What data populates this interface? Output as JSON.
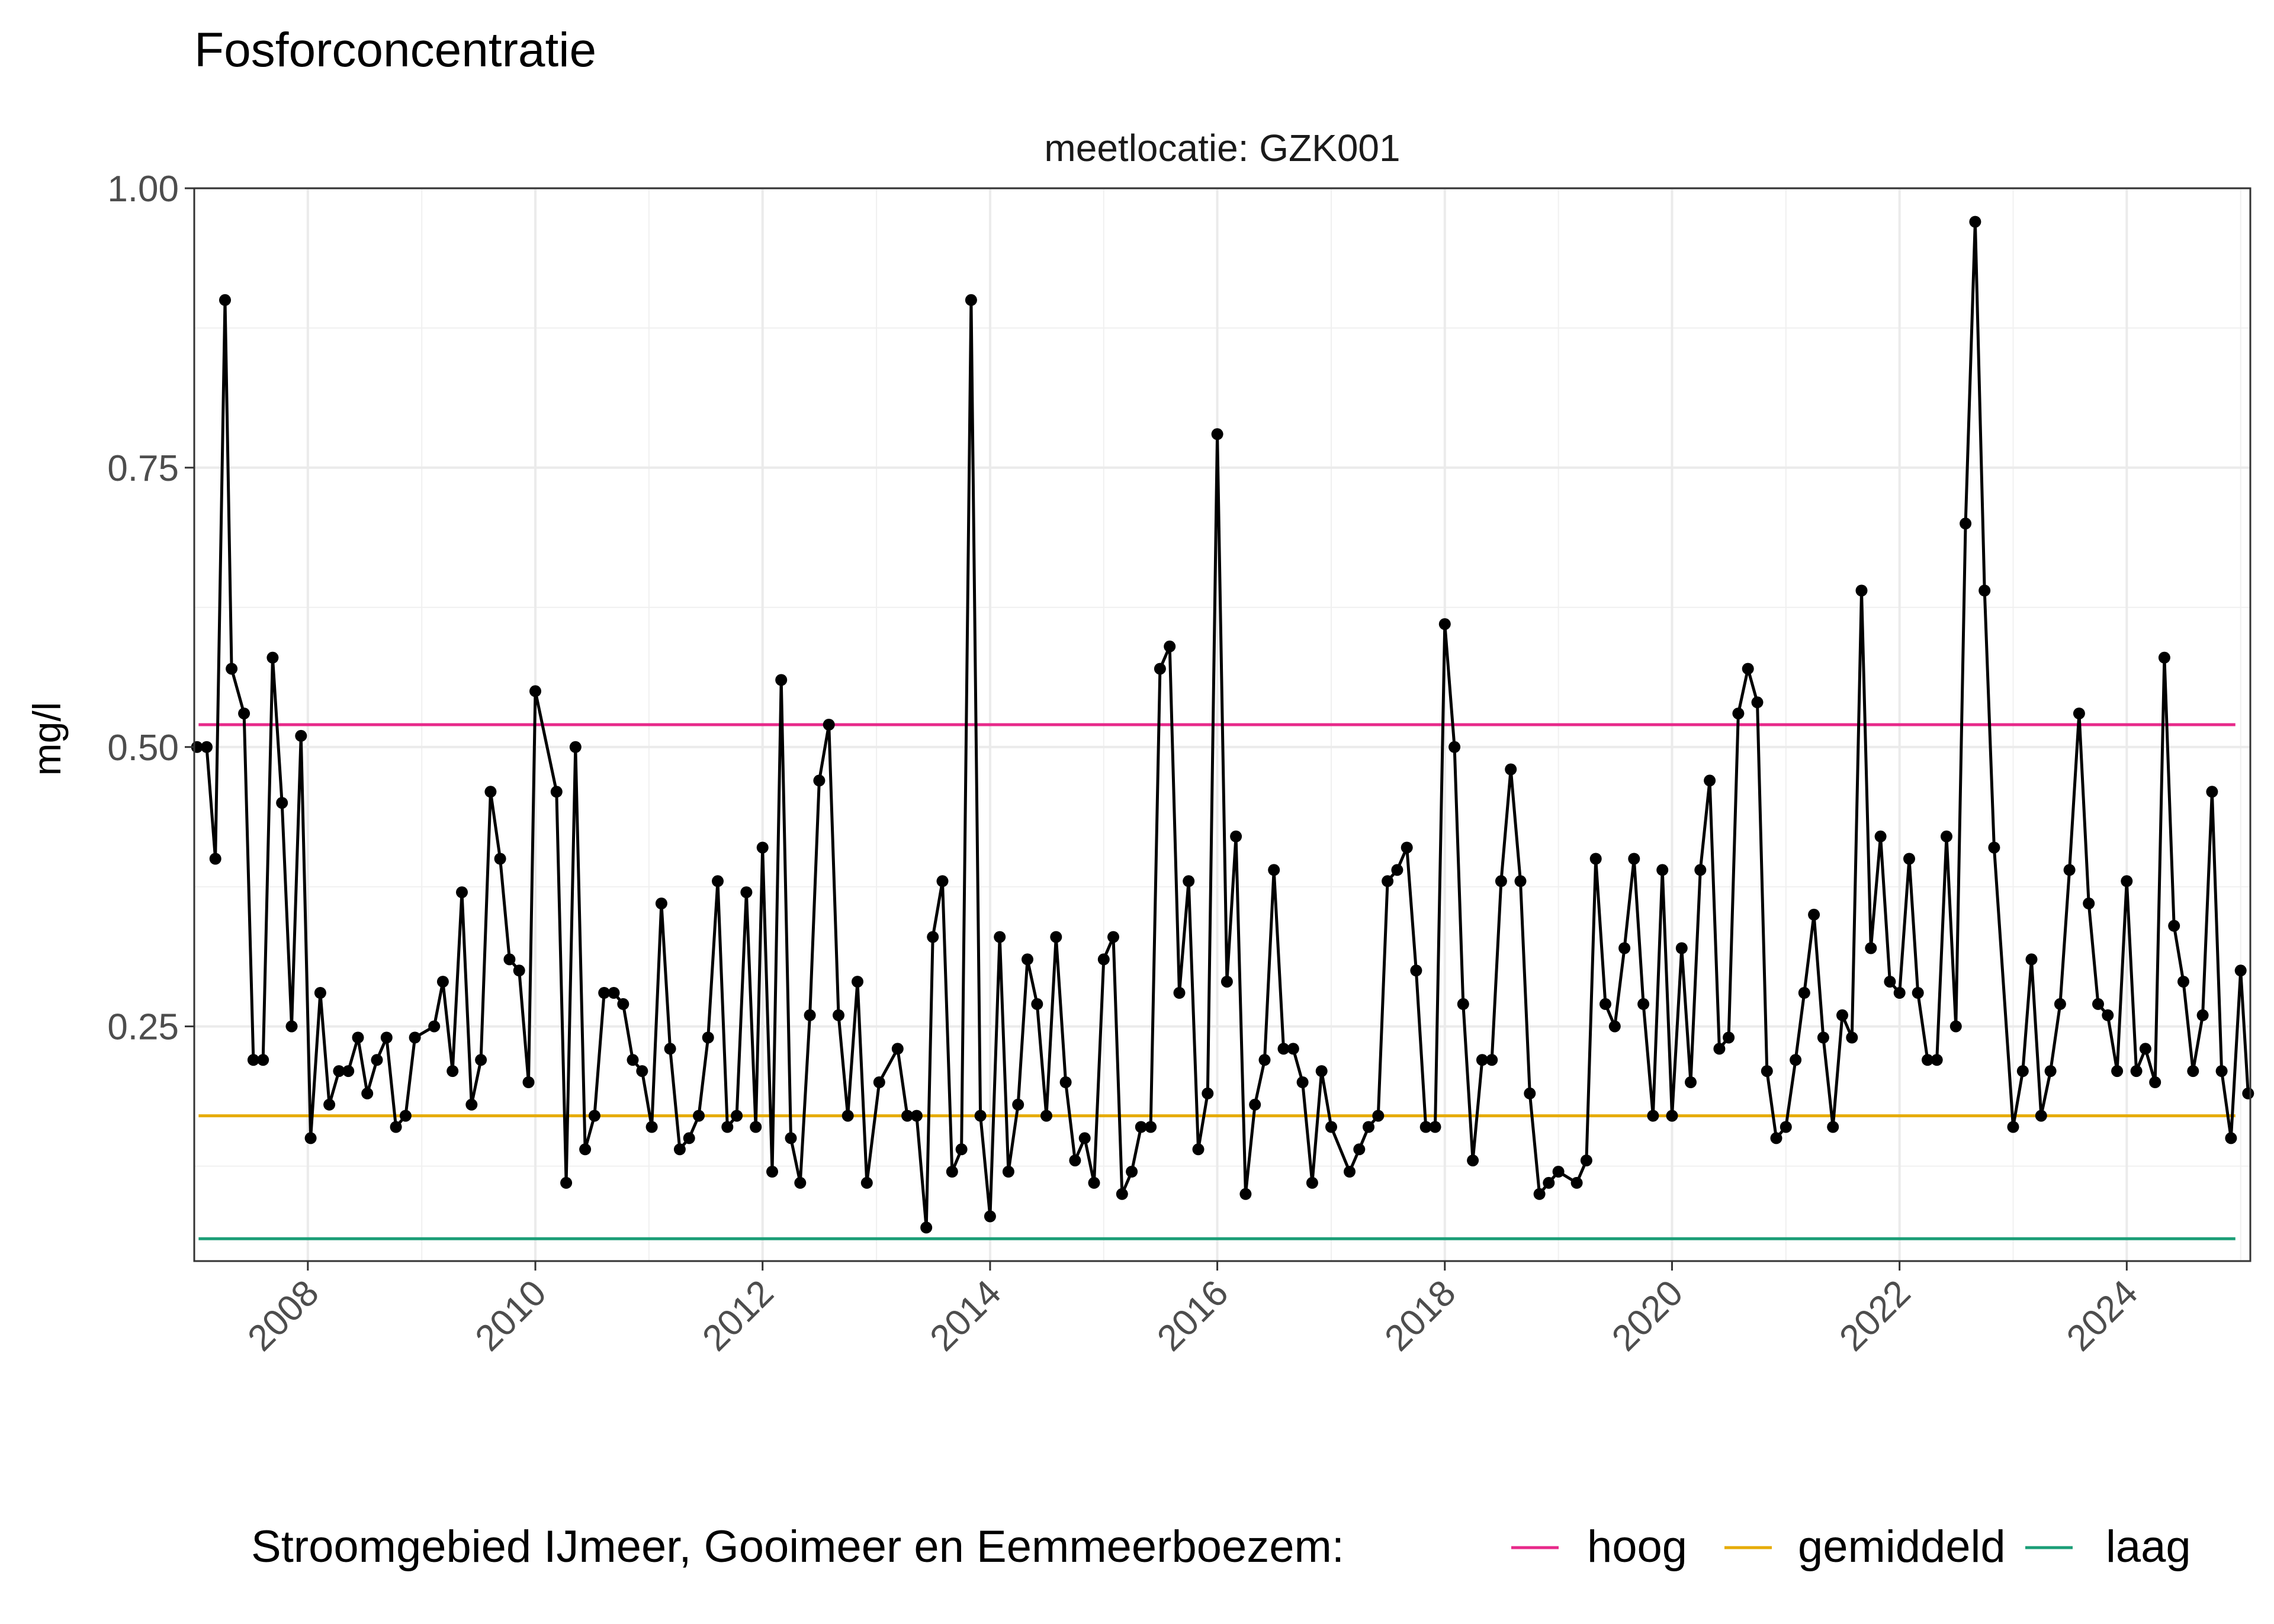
{
  "chart_data": {
    "type": "line",
    "title": "Fosforconcentratie",
    "facet_label": "meetlocatie: GZK001",
    "xlabel": "",
    "ylabel": "mg/l",
    "xlim": [
      "2007-01-01",
      "2025-02-01"
    ],
    "ylim": [
      0.04,
      1.0
    ],
    "y_ticks": [
      {
        "value": 0.25,
        "label": "0.25"
      },
      {
        "value": 0.5,
        "label": "0.50"
      },
      {
        "value": 0.75,
        "label": "0.75"
      },
      {
        "value": 1.0,
        "label": "1.00"
      }
    ],
    "x_ticks": [
      {
        "value": "2008-01-01",
        "label": "2008"
      },
      {
        "value": "2010-01-01",
        "label": "2010"
      },
      {
        "value": "2012-01-01",
        "label": "2012"
      },
      {
        "value": "2014-01-01",
        "label": "2014"
      },
      {
        "value": "2016-01-01",
        "label": "2016"
      },
      {
        "value": "2018-01-01",
        "label": "2018"
      },
      {
        "value": "2020-01-01",
        "label": "2020"
      },
      {
        "value": "2022-01-01",
        "label": "2022"
      },
      {
        "value": "2024-01-01",
        "label": "2024"
      }
    ],
    "grid": true,
    "legend": {
      "position": "bottom",
      "title": "Stroomgebied IJmeer, Gooimeer en Eemmeerboezem:",
      "entries": [
        "hoog",
        "gemiddeld",
        "laag"
      ]
    },
    "reference_lines": [
      {
        "name": "hoog",
        "value": 0.52,
        "x_start": "2007-01-15",
        "x_end": "2024-12-15",
        "color": "#E7298A"
      },
      {
        "name": "gemiddeld",
        "value": 0.17,
        "x_start": "2007-01-15",
        "x_end": "2024-12-15",
        "color": "#E6AB02"
      },
      {
        "name": "laag",
        "value": 0.06,
        "x_start": "2007-01-15",
        "x_end": "2024-12-15",
        "color": "#1B9E77"
      }
    ],
    "series": [
      {
        "color": "#000000",
        "points": [
          [
            "2007-01-10",
            0.5
          ],
          [
            "2007-02-10",
            0.5
          ],
          [
            "2007-03-10",
            0.4
          ],
          [
            "2007-04-10",
            0.9
          ],
          [
            "2007-05-01",
            0.57
          ],
          [
            "2007-06-10",
            0.53
          ],
          [
            "2007-07-10",
            0.22
          ],
          [
            "2007-08-10",
            0.22
          ],
          [
            "2007-09-10",
            0.58
          ],
          [
            "2007-10-10",
            0.45
          ],
          [
            "2007-11-10",
            0.25
          ],
          [
            "2007-12-10",
            0.51
          ],
          [
            "2008-01-10",
            0.15
          ],
          [
            "2008-02-10",
            0.28
          ],
          [
            "2008-03-10",
            0.18
          ],
          [
            "2008-04-10",
            0.21
          ],
          [
            "2008-05-10",
            0.21
          ],
          [
            "2008-06-10",
            0.24
          ],
          [
            "2008-07-10",
            0.19
          ],
          [
            "2008-08-10",
            0.22
          ],
          [
            "2008-09-10",
            0.24
          ],
          [
            "2008-10-10",
            0.16
          ],
          [
            "2008-11-10",
            0.17
          ],
          [
            "2008-12-10",
            0.24
          ],
          [
            "2009-02-10",
            0.25
          ],
          [
            "2009-03-10",
            0.29
          ],
          [
            "2009-04-10",
            0.21
          ],
          [
            "2009-05-10",
            0.37
          ],
          [
            "2009-06-10",
            0.18
          ],
          [
            "2009-07-10",
            0.22
          ],
          [
            "2009-08-10",
            0.46
          ],
          [
            "2009-09-10",
            0.4
          ],
          [
            "2009-10-10",
            0.31
          ],
          [
            "2009-11-10",
            0.3
          ],
          [
            "2009-12-10",
            0.2
          ],
          [
            "2010-01-01",
            0.55
          ],
          [
            "2010-03-10",
            0.46
          ],
          [
            "2010-04-10",
            0.11
          ],
          [
            "2010-05-10",
            0.5
          ],
          [
            "2010-06-10",
            0.14
          ],
          [
            "2010-07-10",
            0.17
          ],
          [
            "2010-08-10",
            0.28
          ],
          [
            "2010-09-10",
            0.28
          ],
          [
            "2010-10-10",
            0.27
          ],
          [
            "2010-11-10",
            0.22
          ],
          [
            "2010-12-10",
            0.21
          ],
          [
            "2011-01-10",
            0.16
          ],
          [
            "2011-02-10",
            0.36
          ],
          [
            "2011-03-10",
            0.23
          ],
          [
            "2011-04-10",
            0.14
          ],
          [
            "2011-05-10",
            0.15
          ],
          [
            "2011-06-10",
            0.17
          ],
          [
            "2011-07-10",
            0.24
          ],
          [
            "2011-08-10",
            0.38
          ],
          [
            "2011-09-10",
            0.16
          ],
          [
            "2011-10-10",
            0.17
          ],
          [
            "2011-11-10",
            0.37
          ],
          [
            "2011-12-10",
            0.16
          ],
          [
            "2012-01-01",
            0.41
          ],
          [
            "2012-02-01",
            0.12
          ],
          [
            "2012-03-01",
            0.56
          ],
          [
            "2012-04-01",
            0.15
          ],
          [
            "2012-05-01",
            0.11
          ],
          [
            "2012-06-01",
            0.26
          ],
          [
            "2012-07-01",
            0.47
          ],
          [
            "2012-08-01",
            0.52
          ],
          [
            "2012-09-01",
            0.26
          ],
          [
            "2012-10-01",
            0.17
          ],
          [
            "2012-11-01",
            0.29
          ],
          [
            "2012-12-01",
            0.11
          ],
          [
            "2013-01-10",
            0.2
          ],
          [
            "2013-03-10",
            0.23
          ],
          [
            "2013-04-10",
            0.17
          ],
          [
            "2013-05-10",
            0.17
          ],
          [
            "2013-06-10",
            0.07
          ],
          [
            "2013-07-01",
            0.33
          ],
          [
            "2013-08-01",
            0.38
          ],
          [
            "2013-09-01",
            0.12
          ],
          [
            "2013-10-01",
            0.14
          ],
          [
            "2013-11-01",
            0.9
          ],
          [
            "2013-12-01",
            0.17
          ],
          [
            "2014-01-01",
            0.08
          ],
          [
            "2014-02-01",
            0.33
          ],
          [
            "2014-03-01",
            0.12
          ],
          [
            "2014-04-01",
            0.18
          ],
          [
            "2014-05-01",
            0.31
          ],
          [
            "2014-06-01",
            0.27
          ],
          [
            "2014-07-01",
            0.17
          ],
          [
            "2014-08-01",
            0.33
          ],
          [
            "2014-09-01",
            0.2
          ],
          [
            "2014-10-01",
            0.13
          ],
          [
            "2014-11-01",
            0.15
          ],
          [
            "2014-12-01",
            0.11
          ],
          [
            "2015-01-01",
            0.31
          ],
          [
            "2015-02-01",
            0.33
          ],
          [
            "2015-03-01",
            0.1
          ],
          [
            "2015-04-01",
            0.12
          ],
          [
            "2015-05-01",
            0.16
          ],
          [
            "2015-06-01",
            0.16
          ],
          [
            "2015-07-01",
            0.57
          ],
          [
            "2015-08-01",
            0.59
          ],
          [
            "2015-09-01",
            0.28
          ],
          [
            "2015-10-01",
            0.38
          ],
          [
            "2015-11-01",
            0.14
          ],
          [
            "2015-12-01",
            0.19
          ],
          [
            "2016-01-01",
            0.78
          ],
          [
            "2016-02-01",
            0.29
          ],
          [
            "2016-03-01",
            0.42
          ],
          [
            "2016-04-01",
            0.1
          ],
          [
            "2016-05-01",
            0.18
          ],
          [
            "2016-06-01",
            0.22
          ],
          [
            "2016-07-01",
            0.39
          ],
          [
            "2016-08-01",
            0.23
          ],
          [
            "2016-09-01",
            0.23
          ],
          [
            "2016-10-01",
            0.2
          ],
          [
            "2016-11-01",
            0.11
          ],
          [
            "2016-12-01",
            0.21
          ],
          [
            "2017-01-01",
            0.16
          ],
          [
            "2017-03-01",
            0.12
          ],
          [
            "2017-04-01",
            0.14
          ],
          [
            "2017-05-01",
            0.16
          ],
          [
            "2017-06-01",
            0.17
          ],
          [
            "2017-07-01",
            0.38
          ],
          [
            "2017-08-01",
            0.39
          ],
          [
            "2017-09-01",
            0.41
          ],
          [
            "2017-10-01",
            0.3
          ],
          [
            "2017-11-01",
            0.16
          ],
          [
            "2017-12-01",
            0.16
          ],
          [
            "2018-01-01",
            0.61
          ],
          [
            "2018-02-01",
            0.5
          ],
          [
            "2018-03-01",
            0.27
          ],
          [
            "2018-04-01",
            0.13
          ],
          [
            "2018-05-01",
            0.22
          ],
          [
            "2018-06-01",
            0.22
          ],
          [
            "2018-07-01",
            0.38
          ],
          [
            "2018-08-01",
            0.48
          ],
          [
            "2018-09-01",
            0.38
          ],
          [
            "2018-10-01",
            0.19
          ],
          [
            "2018-11-01",
            0.1
          ],
          [
            "2018-12-01",
            0.11
          ],
          [
            "2019-01-01",
            0.12
          ],
          [
            "2019-03-01",
            0.11
          ],
          [
            "2019-04-01",
            0.13
          ],
          [
            "2019-05-01",
            0.4
          ],
          [
            "2019-06-01",
            0.27
          ],
          [
            "2019-07-01",
            0.25
          ],
          [
            "2019-08-01",
            0.32
          ],
          [
            "2019-09-01",
            0.4
          ],
          [
            "2019-10-01",
            0.27
          ],
          [
            "2019-11-01",
            0.17
          ],
          [
            "2019-12-01",
            0.39
          ],
          [
            "2020-01-01",
            0.17
          ],
          [
            "2020-02-01",
            0.32
          ],
          [
            "2020-03-01",
            0.2
          ],
          [
            "2020-04-01",
            0.39
          ],
          [
            "2020-05-01",
            0.47
          ],
          [
            "2020-06-01",
            0.23
          ],
          [
            "2020-07-01",
            0.24
          ],
          [
            "2020-08-01",
            0.53
          ],
          [
            "2020-09-01",
            0.57
          ],
          [
            "2020-10-01",
            0.54
          ],
          [
            "2020-11-01",
            0.21
          ],
          [
            "2020-12-01",
            0.15
          ],
          [
            "2021-01-01",
            0.16
          ],
          [
            "2021-02-01",
            0.22
          ],
          [
            "2021-03-01",
            0.28
          ],
          [
            "2021-04-01",
            0.35
          ],
          [
            "2021-05-01",
            0.24
          ],
          [
            "2021-06-01",
            0.16
          ],
          [
            "2021-07-01",
            0.26
          ],
          [
            "2021-08-01",
            0.24
          ],
          [
            "2021-09-01",
            0.64
          ],
          [
            "2021-10-01",
            0.32
          ],
          [
            "2021-11-01",
            0.42
          ],
          [
            "2021-12-01",
            0.29
          ],
          [
            "2022-01-01",
            0.28
          ],
          [
            "2022-02-01",
            0.4
          ],
          [
            "2022-03-01",
            0.28
          ],
          [
            "2022-04-01",
            0.22
          ],
          [
            "2022-05-01",
            0.22
          ],
          [
            "2022-06-01",
            0.42
          ],
          [
            "2022-07-01",
            0.25
          ],
          [
            "2022-08-01",
            0.7
          ],
          [
            "2022-09-01",
            0.97
          ],
          [
            "2022-10-01",
            0.64
          ],
          [
            "2022-11-01",
            0.41
          ],
          [
            "2023-01-01",
            0.16
          ],
          [
            "2023-02-01",
            0.21
          ],
          [
            "2023-03-01",
            0.31
          ],
          [
            "2023-04-01",
            0.17
          ],
          [
            "2023-05-01",
            0.21
          ],
          [
            "2023-06-01",
            0.27
          ],
          [
            "2023-07-01",
            0.39
          ],
          [
            "2023-08-01",
            0.53
          ],
          [
            "2023-09-01",
            0.36
          ],
          [
            "2023-10-01",
            0.27
          ],
          [
            "2023-11-01",
            0.26
          ],
          [
            "2023-12-01",
            0.21
          ],
          [
            "2024-01-01",
            0.38
          ],
          [
            "2024-02-01",
            0.21
          ],
          [
            "2024-03-01",
            0.23
          ],
          [
            "2024-04-01",
            0.2
          ],
          [
            "2024-05-01",
            0.58
          ],
          [
            "2024-06-01",
            0.34
          ],
          [
            "2024-07-01",
            0.29
          ],
          [
            "2024-08-01",
            0.21
          ],
          [
            "2024-09-01",
            0.26
          ],
          [
            "2024-10-01",
            0.46
          ],
          [
            "2024-11-01",
            0.21
          ],
          [
            "2024-12-01",
            0.15
          ],
          [
            "2025-01-01",
            0.3
          ],
          [
            "2025-01-25",
            0.19
          ]
        ]
      }
    ]
  }
}
